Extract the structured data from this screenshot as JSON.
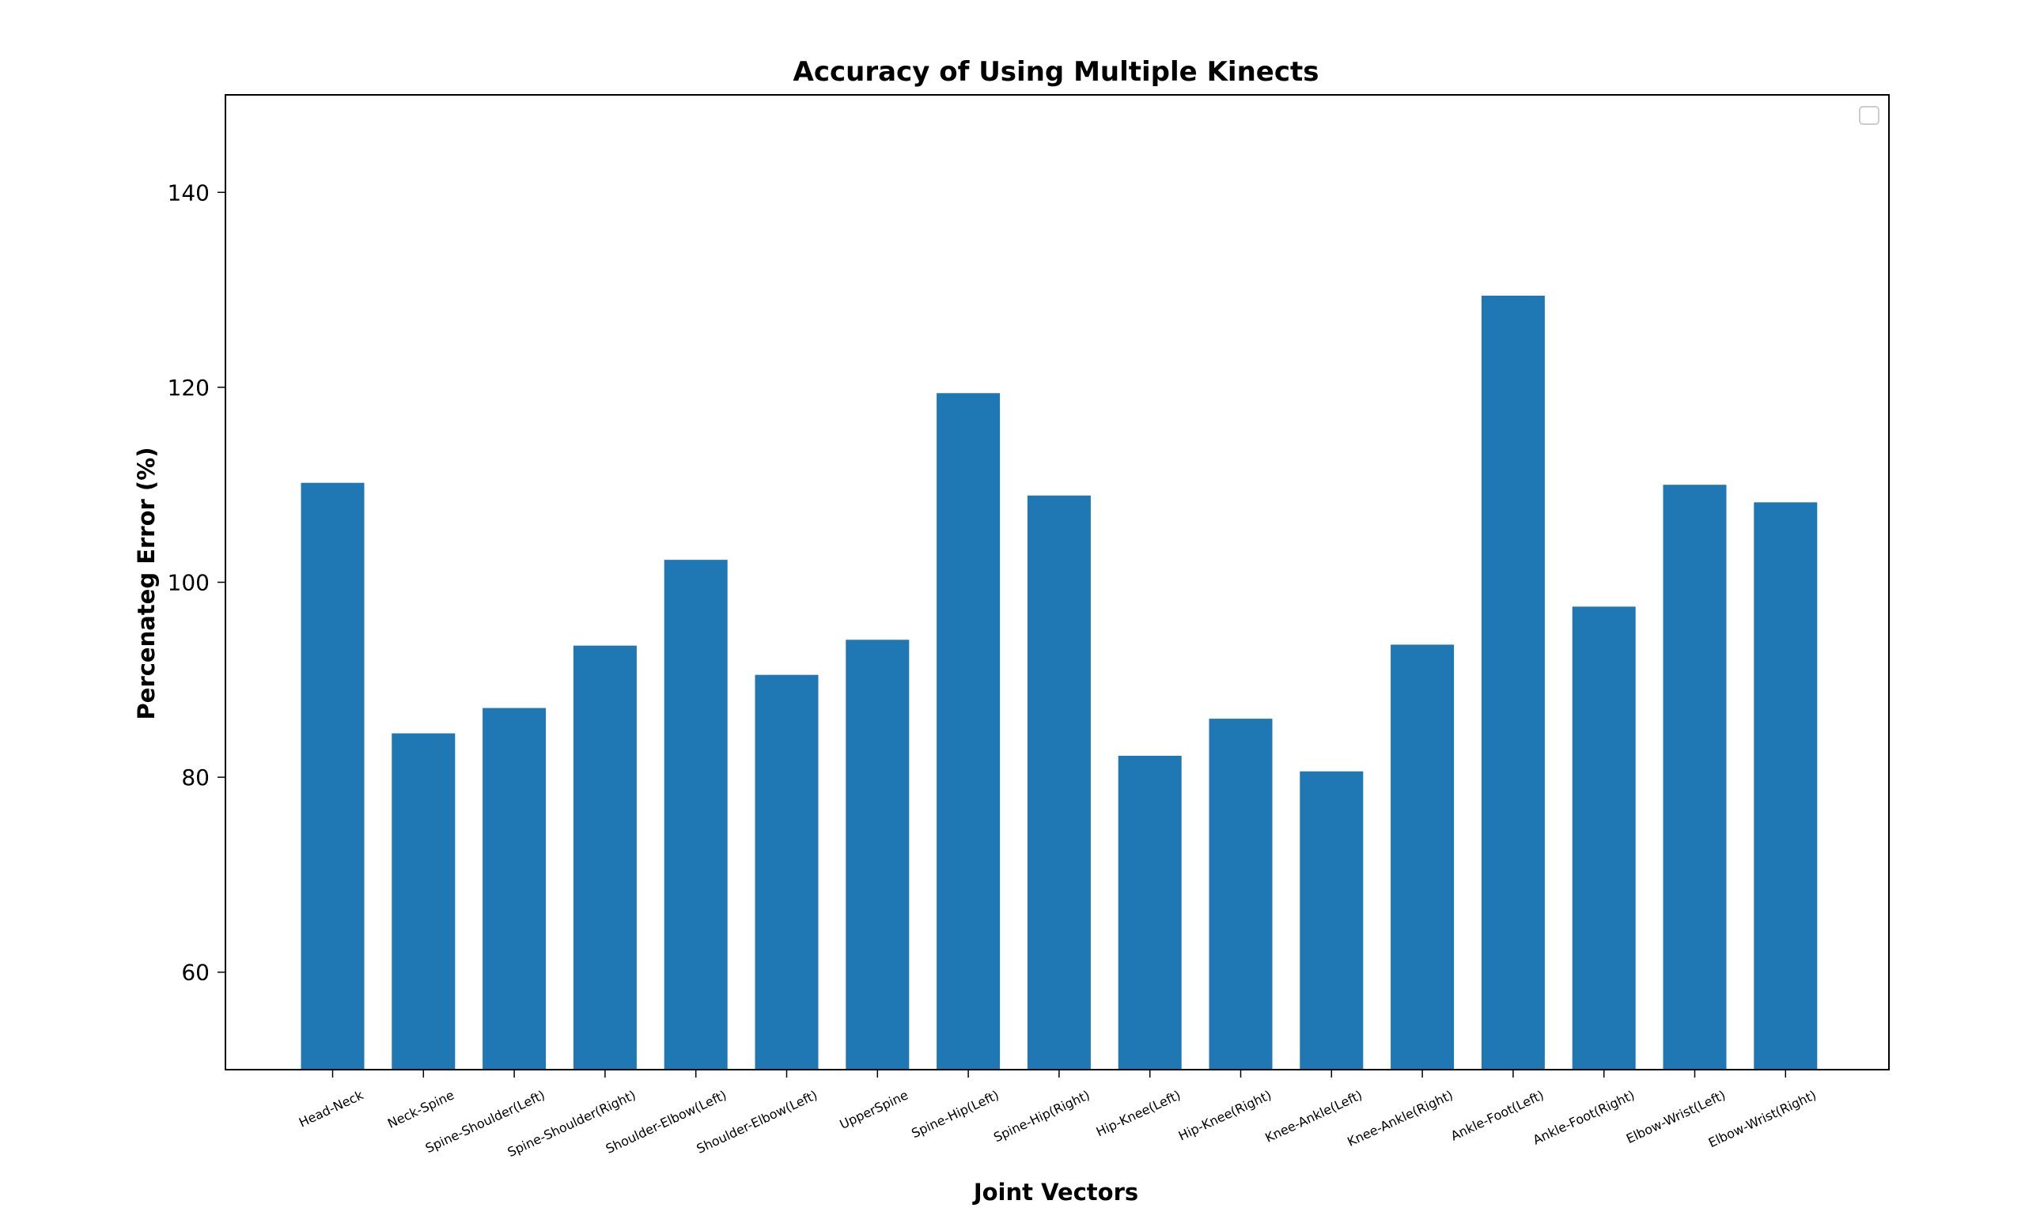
{
  "chart_data": {
    "type": "bar",
    "title": "Accuracy of Using Multiple Kinects",
    "xlabel": "Joint Vectors",
    "ylabel": "Percenateg Error (%)",
    "categories": [
      "Head-Neck",
      "Neck-Spine",
      "Spine-Shoulder(Left)",
      "Spine-Shoulder(Right)",
      "Shoulder-Elbow(Left)",
      "Shoulder-Elbow(Left)",
      "UpperSpine",
      "Spine-Hip(Left)",
      "Spine-Hip(Right)",
      "Hip-Knee(Left)",
      "Hip-Knee(Right)",
      "Knee-Ankle(Left)",
      "Knee-Ankle(Right)",
      "Ankle-Foot(Left)",
      "Ankle-Foot(Right)",
      "Elbow-Wrist(Left)",
      "Elbow-Wrist(Right)"
    ],
    "values": [
      110.2,
      84.5,
      87.1,
      93.5,
      102.3,
      90.5,
      94.1,
      119.4,
      108.9,
      82.2,
      86.0,
      80.6,
      93.6,
      129.4,
      97.5,
      110.0,
      108.2
    ],
    "ylim": [
      50,
      150
    ],
    "yticks": [
      60,
      80,
      100,
      120,
      140
    ],
    "grid": false,
    "legend": "top-right (empty)",
    "colors": {
      "bar": "#1f77b4",
      "axis": "#000000",
      "legend_border": "#cccccc"
    }
  }
}
